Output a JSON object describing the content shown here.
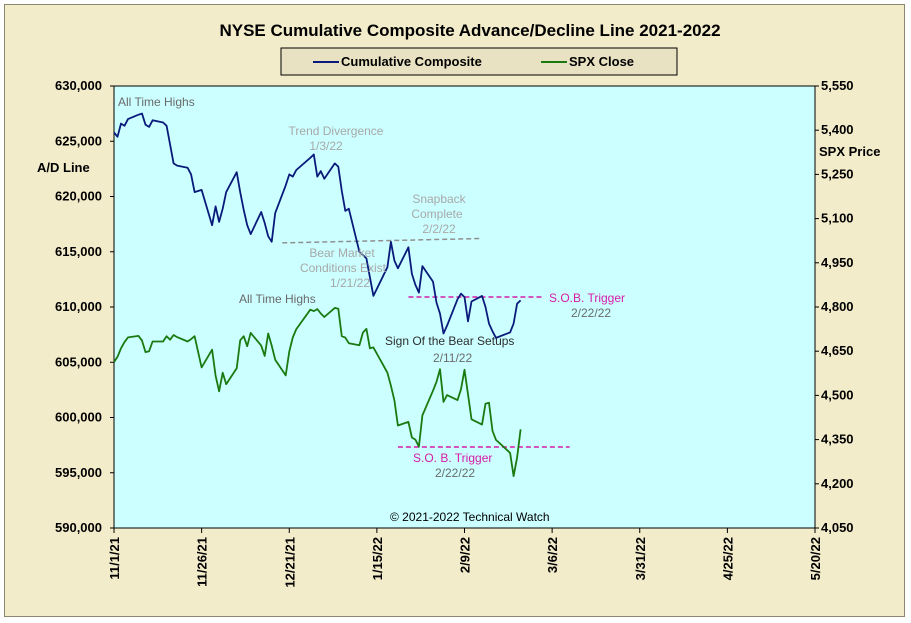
{
  "chart_data": {
    "type": "line",
    "title": "NYSE Cumulative  Composite Advance/Decline Line 2021-2022",
    "ylabel_left": "A/D Line",
    "ylabel_right": "SPX Price",
    "left_axis": {
      "ylim": [
        590000,
        630000
      ],
      "ticks": [
        "590,000",
        "595,000",
        "600,000",
        "605,000",
        "610,000",
        "615,000",
        "620,000",
        "625,000",
        "630,000"
      ]
    },
    "right_axis": {
      "ylim": [
        4050,
        5550
      ],
      "ticks": [
        "4,050",
        "4,200",
        "4,350",
        "4,500",
        "4,650",
        "4,800",
        "4,950",
        "5,100",
        "5,250",
        "5,400",
        "5,550"
      ]
    },
    "x_ticks": [
      "11/1/21",
      "11/26/21",
      "12/21/21",
      "1/15/22",
      "2/9/22",
      "3/6/22",
      "3/31/22",
      "4/25/22",
      "5/20/22"
    ],
    "xlim": [
      "11/1/21",
      "5/20/22"
    ],
    "background_color": "#ccffff",
    "legend": {
      "placement": "top-center",
      "entries": [
        "Cumulative Composite",
        "SPX Close"
      ]
    },
    "series": [
      {
        "name": "Cumulative Composite",
        "axis": "left",
        "color": "#0a1a7a",
        "dates": [
          "11/1/21",
          "11/2/21",
          "11/3/21",
          "11/4/21",
          "11/5/21",
          "11/8/21",
          "11/9/21",
          "11/10/21",
          "11/11/21",
          "11/12/21",
          "11/15/21",
          "11/16/21",
          "11/17/21",
          "11/18/21",
          "11/19/21",
          "11/22/21",
          "11/23/21",
          "11/24/21",
          "11/26/21",
          "11/29/21",
          "11/30/21",
          "12/1/21",
          "12/2/21",
          "12/3/21",
          "12/6/21",
          "12/7/21",
          "12/8/21",
          "12/9/21",
          "12/10/21",
          "12/13/21",
          "12/14/21",
          "12/15/21",
          "12/16/21",
          "12/17/21",
          "12/20/21",
          "12/21/21",
          "12/22/21",
          "12/23/21",
          "12/27/21",
          "12/28/21",
          "12/29/21",
          "12/30/21",
          "12/31/21",
          "1/3/22",
          "1/4/22",
          "1/5/22",
          "1/6/22",
          "1/7/22",
          "1/10/22",
          "1/11/22",
          "1/12/22",
          "1/13/22",
          "1/14/22",
          "1/18/22",
          "1/19/22",
          "1/20/22",
          "1/21/22",
          "1/24/22",
          "1/25/22",
          "1/26/22",
          "1/27/22",
          "1/28/22",
          "1/31/22",
          "2/1/22",
          "2/2/22",
          "2/3/22",
          "2/4/22",
          "2/7/22",
          "2/8/22",
          "2/9/22",
          "2/10/22",
          "2/11/22",
          "2/14/22",
          "2/15/22",
          "2/16/22",
          "2/17/22",
          "2/18/22",
          "2/22/22",
          "2/23/22",
          "2/24/22",
          "2/25/22"
        ],
        "values": [
          625800,
          625400,
          626600,
          626400,
          627000,
          627400,
          627500,
          626500,
          626300,
          626900,
          626700,
          626400,
          624700,
          623000,
          622800,
          622600,
          622000,
          620400,
          620600,
          617400,
          619100,
          617700,
          618900,
          620400,
          622200,
          620400,
          618800,
          617400,
          616600,
          618600,
          617600,
          616400,
          615900,
          618500,
          621000,
          622000,
          621800,
          622400,
          623500,
          623800,
          621800,
          622300,
          621600,
          623000,
          622700,
          620500,
          618700,
          618900,
          615000,
          614700,
          614400,
          612700,
          611000,
          613600,
          615900,
          614200,
          613500,
          615400,
          613000,
          612000,
          611300,
          613700,
          612300,
          610400,
          609400,
          607600,
          608300,
          610700,
          611200,
          610900,
          608700,
          610500,
          611000,
          610000,
          608500,
          607800,
          607200,
          607700,
          608500,
          610300,
          610600
        ]
      },
      {
        "name": "SPX Close",
        "axis": "right",
        "color": "#1a7a10",
        "dates": [
          "11/1/21",
          "11/2/21",
          "11/3/21",
          "11/4/21",
          "11/5/21",
          "11/8/21",
          "11/9/21",
          "11/10/21",
          "11/11/21",
          "11/12/21",
          "11/15/21",
          "11/16/21",
          "11/17/21",
          "11/18/21",
          "11/19/21",
          "11/22/21",
          "11/23/21",
          "11/24/21",
          "11/26/21",
          "11/29/21",
          "11/30/21",
          "12/1/21",
          "12/2/21",
          "12/3/21",
          "12/6/21",
          "12/7/21",
          "12/8/21",
          "12/9/21",
          "12/10/21",
          "12/13/21",
          "12/14/21",
          "12/15/21",
          "12/16/21",
          "12/17/21",
          "12/20/21",
          "12/21/21",
          "12/22/21",
          "12/23/21",
          "12/27/21",
          "12/28/21",
          "12/29/21",
          "12/30/21",
          "12/31/21",
          "1/3/22",
          "1/4/22",
          "1/5/22",
          "1/6/22",
          "1/7/22",
          "1/10/22",
          "1/11/22",
          "1/12/22",
          "1/13/22",
          "1/14/22",
          "1/18/22",
          "1/19/22",
          "1/20/22",
          "1/21/22",
          "1/24/22",
          "1/25/22",
          "1/26/22",
          "1/27/22",
          "1/28/22",
          "1/31/22",
          "2/1/22",
          "2/2/22",
          "2/3/22",
          "2/4/22",
          "2/7/22",
          "2/8/22",
          "2/9/22",
          "2/10/22",
          "2/11/22",
          "2/14/22",
          "2/15/22",
          "2/16/22",
          "2/17/22",
          "2/18/22",
          "2/22/22",
          "2/23/22",
          "2/24/22",
          "2/25/22"
        ],
        "values": [
          4613,
          4631,
          4660,
          4681,
          4697,
          4702,
          4686,
          4647,
          4650,
          4683,
          4683,
          4701,
          4689,
          4705,
          4698,
          4683,
          4691,
          4701,
          4595,
          4655,
          4567,
          4514,
          4577,
          4538,
          4592,
          4687,
          4701,
          4667,
          4712,
          4669,
          4634,
          4710,
          4669,
          4621,
          4568,
          4649,
          4697,
          4725,
          4791,
          4786,
          4793,
          4778,
          4766,
          4797,
          4794,
          4701,
          4696,
          4677,
          4670,
          4713,
          4726,
          4660,
          4663,
          4577,
          4533,
          4483,
          4398,
          4410,
          4357,
          4350,
          4326,
          4432,
          4516,
          4546,
          4589,
          4478,
          4501,
          4484,
          4521,
          4587,
          4504,
          4419,
          4401,
          4472,
          4475,
          4380,
          4349,
          4305,
          4226,
          4289,
          4385
        ]
      }
    ],
    "annotations": [
      {
        "text": "All Time Highs",
        "color": "#6a6a6a"
      },
      {
        "text": "Trend  Divergence",
        "color": "#a8a8a8"
      },
      {
        "text": "1/3/22",
        "color": "#a8a8a8"
      },
      {
        "text": "Snapback",
        "color": "#a8a8a8"
      },
      {
        "text": "Complete",
        "color": "#a8a8a8"
      },
      {
        "text": "2/2/22",
        "color": "#a8a8a8"
      },
      {
        "text": "Bear Market",
        "color": "#a8a8a8"
      },
      {
        "text": "Conditions  Exist",
        "color": "#a8a8a8"
      },
      {
        "text": "1/21/22",
        "color": "#a8a8a8"
      },
      {
        "text": "S.O.B. Trigger",
        "color": "#d81ba8"
      },
      {
        "text": "2/22/22",
        "color": "#6a6a6a"
      },
      {
        "text": "All Time  Highs",
        "color": "#6a6a6a"
      },
      {
        "text": "Sign Of the Bear Setups",
        "color": "#2e2e2e"
      },
      {
        "text": "2/11/22",
        "color": "#6a6a6a"
      },
      {
        "text": "S.O. B. Trigger",
        "color": "#d81ba8"
      },
      {
        "text": "2/22/22",
        "color": "#6a6a6a"
      },
      {
        "text": "© 2021-2022  Technical Watch",
        "color": "#000000"
      }
    ],
    "reference_lines": [
      {
        "name": "trend-divergence-line",
        "axis": "left",
        "from": "12/19/21",
        "to": "2/14/22",
        "y_start": 615800,
        "y_end": 616200,
        "color": "#909090",
        "style": "dashed"
      },
      {
        "name": "sob-trigger-line-upper",
        "axis": "left",
        "from": "1/24/22",
        "to": "3/3/22",
        "y": 610900,
        "color": "#d81ba8",
        "style": "dashed"
      },
      {
        "name": "sob-trigger-line-lower",
        "axis": "right",
        "from": "1/21/22",
        "to": "3/11/22",
        "y": 4325,
        "color": "#d81ba8",
        "style": "dashed"
      }
    ]
  }
}
